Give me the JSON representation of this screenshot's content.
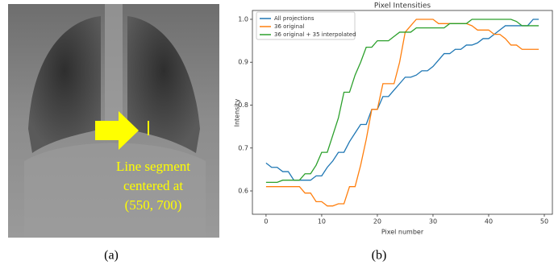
{
  "image_annotation": {
    "lines": [
      "Line segment",
      "centered at",
      "(550, 700)"
    ]
  },
  "panel_labels": [
    "(a)",
    "(b)"
  ],
  "chart_data": {
    "type": "line",
    "title": "Pixel Intensities",
    "x_label": "Pixel number",
    "y_label": "Intensity",
    "x": [
      0,
      1,
      2,
      3,
      4,
      5,
      6,
      7,
      8,
      9,
      10,
      11,
      12,
      13,
      14,
      15,
      16,
      17,
      18,
      19,
      20,
      21,
      22,
      23,
      24,
      25,
      26,
      27,
      28,
      29,
      30,
      31,
      32,
      33,
      34,
      35,
      36,
      37,
      38,
      39,
      40,
      41,
      42,
      43,
      44,
      45,
      46,
      47,
      48,
      49
    ],
    "series": [
      {
        "name": "All projections",
        "color": "#1f77b4",
        "values": [
          0.665,
          0.655,
          0.655,
          0.645,
          0.645,
          0.625,
          0.625,
          0.625,
          0.625,
          0.635,
          0.635,
          0.655,
          0.67,
          0.69,
          0.69,
          0.715,
          0.735,
          0.755,
          0.755,
          0.79,
          0.79,
          0.82,
          0.82,
          0.835,
          0.85,
          0.865,
          0.865,
          0.87,
          0.88,
          0.88,
          0.89,
          0.905,
          0.92,
          0.92,
          0.93,
          0.93,
          0.94,
          0.94,
          0.945,
          0.955,
          0.955,
          0.965,
          0.975,
          0.985,
          0.985,
          0.985,
          0.985,
          0.985,
          1.0,
          1.0
        ]
      },
      {
        "name": "36 original",
        "color": "#ff7f0e",
        "values": [
          0.61,
          0.61,
          0.61,
          0.61,
          0.61,
          0.61,
          0.61,
          0.595,
          0.595,
          0.575,
          0.575,
          0.565,
          0.565,
          0.57,
          0.57,
          0.61,
          0.61,
          0.66,
          0.72,
          0.79,
          0.79,
          0.85,
          0.85,
          0.85,
          0.9,
          0.97,
          0.985,
          1.0,
          1.0,
          1.0,
          1.0,
          0.99,
          0.99,
          0.99,
          0.99,
          0.99,
          0.99,
          0.985,
          0.975,
          0.975,
          0.975,
          0.965,
          0.965,
          0.955,
          0.94,
          0.94,
          0.93,
          0.93,
          0.93,
          0.93
        ]
      },
      {
        "name": "36 original + 35 interpolated",
        "color": "#2ca02c",
        "values": [
          0.62,
          0.62,
          0.62,
          0.625,
          0.625,
          0.625,
          0.625,
          0.64,
          0.64,
          0.66,
          0.69,
          0.69,
          0.73,
          0.77,
          0.83,
          0.83,
          0.87,
          0.9,
          0.935,
          0.935,
          0.95,
          0.95,
          0.95,
          0.96,
          0.97,
          0.97,
          0.97,
          0.98,
          0.98,
          0.98,
          0.98,
          0.98,
          0.98,
          0.99,
          0.99,
          0.99,
          0.99,
          1.0,
          1.0,
          1.0,
          1.0,
          1.0,
          1.0,
          1.0,
          1.0,
          0.995,
          0.985,
          0.985,
          0.985,
          0.985
        ]
      }
    ],
    "xlim": [
      -2.45,
      51.45
    ],
    "xticks": [
      0,
      10,
      20,
      30,
      40,
      50
    ],
    "ylim": [
      0.5456,
      1.0206
    ],
    "yticks": [
      0.6,
      0.7,
      0.8,
      0.9,
      {
        "value": 1,
        "label": "1.0"
      }
    ],
    "legend": "upper left",
    "grid": false
  }
}
